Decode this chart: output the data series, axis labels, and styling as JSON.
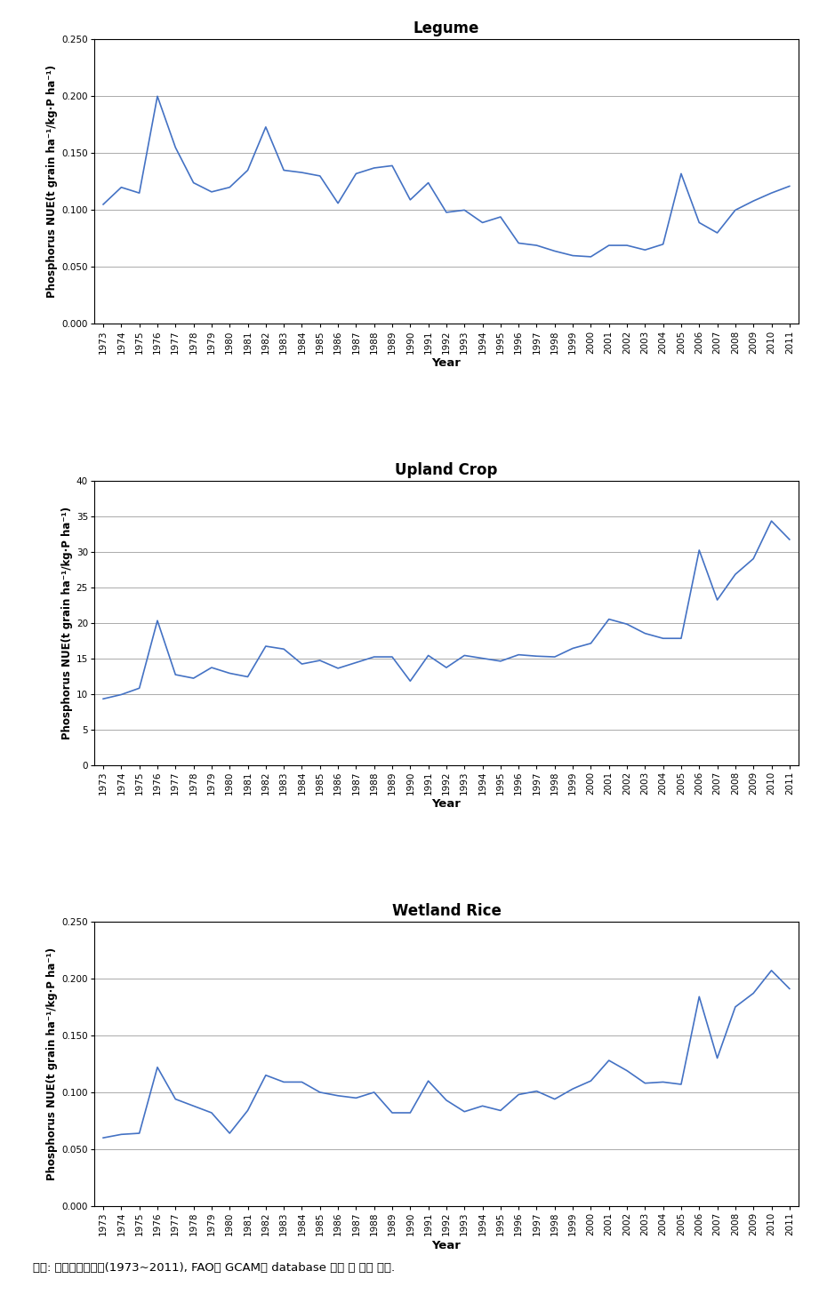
{
  "years": [
    1973,
    1974,
    1975,
    1976,
    1977,
    1978,
    1979,
    1980,
    1981,
    1982,
    1983,
    1984,
    1985,
    1986,
    1987,
    1988,
    1989,
    1990,
    1991,
    1992,
    1993,
    1994,
    1995,
    1996,
    1997,
    1998,
    1999,
    2000,
    2001,
    2002,
    2003,
    2004,
    2005,
    2006,
    2007,
    2008,
    2009,
    2010,
    2011
  ],
  "legume": [
    0.105,
    0.12,
    0.115,
    0.2,
    0.155,
    0.124,
    0.116,
    0.12,
    0.135,
    0.173,
    0.135,
    0.133,
    0.13,
    0.106,
    0.132,
    0.137,
    0.139,
    0.109,
    0.124,
    0.098,
    0.1,
    0.089,
    0.094,
    0.071,
    0.069,
    0.064,
    0.06,
    0.059,
    0.069,
    0.069,
    0.065,
    0.07,
    0.132,
    0.089,
    0.08,
    0.1,
    0.108,
    0.115,
    0.121
  ],
  "upland": [
    9.3,
    9.9,
    10.8,
    20.3,
    12.7,
    12.2,
    13.7,
    12.9,
    12.4,
    16.7,
    16.3,
    14.2,
    14.7,
    13.6,
    14.4,
    15.2,
    15.2,
    11.8,
    15.4,
    13.7,
    15.4,
    15.0,
    14.6,
    15.5,
    15.3,
    15.2,
    16.4,
    17.1,
    20.5,
    19.8,
    18.5,
    17.8,
    17.8,
    30.2,
    23.2,
    26.8,
    29.0,
    34.3,
    31.7
  ],
  "wetland": [
    0.06,
    0.063,
    0.064,
    0.122,
    0.094,
    0.088,
    0.082,
    0.064,
    0.084,
    0.115,
    0.109,
    0.109,
    0.1,
    0.097,
    0.095,
    0.1,
    0.082,
    0.082,
    0.11,
    0.093,
    0.083,
    0.088,
    0.084,
    0.098,
    0.101,
    0.094,
    0.103,
    0.11,
    0.128,
    0.119,
    0.108,
    0.109,
    0.107,
    0.184,
    0.13,
    0.175,
    0.187,
    0.207,
    0.191
  ],
  "legume_title": "Legume",
  "upland_title": "Upland Crop",
  "wetland_title": "Wetland Rice",
  "ylabel": "Phosphorus NUE(t grain ha⁻¹/kg·P ha⁻¹)",
  "xlabel": "Year",
  "legume_ylim": [
    0.0,
    0.25
  ],
  "upland_ylim": [
    0,
    40
  ],
  "wetland_ylim": [
    0.0,
    0.25
  ],
  "legume_yticks": [
    0.0,
    0.05,
    0.1,
    0.15,
    0.2,
    0.25
  ],
  "upland_yticks": [
    0,
    5,
    10,
    15,
    20,
    25,
    30,
    35,
    40
  ],
  "wetland_yticks": [
    0.0,
    0.05,
    0.1,
    0.15,
    0.2,
    0.25
  ],
  "line_color": "#4472c4",
  "line_width": 1.2,
  "grid_color": "#aaaaaa",
  "bg_color": "#ffffff",
  "caption": "자료: 농림축산식품부(1973~2011), FAO와 GCAM의 database 참고 및 저자 작성.",
  "title_fontsize": 12,
  "label_fontsize": 8.5,
  "tick_fontsize": 7.5,
  "caption_fontsize": 9.5
}
